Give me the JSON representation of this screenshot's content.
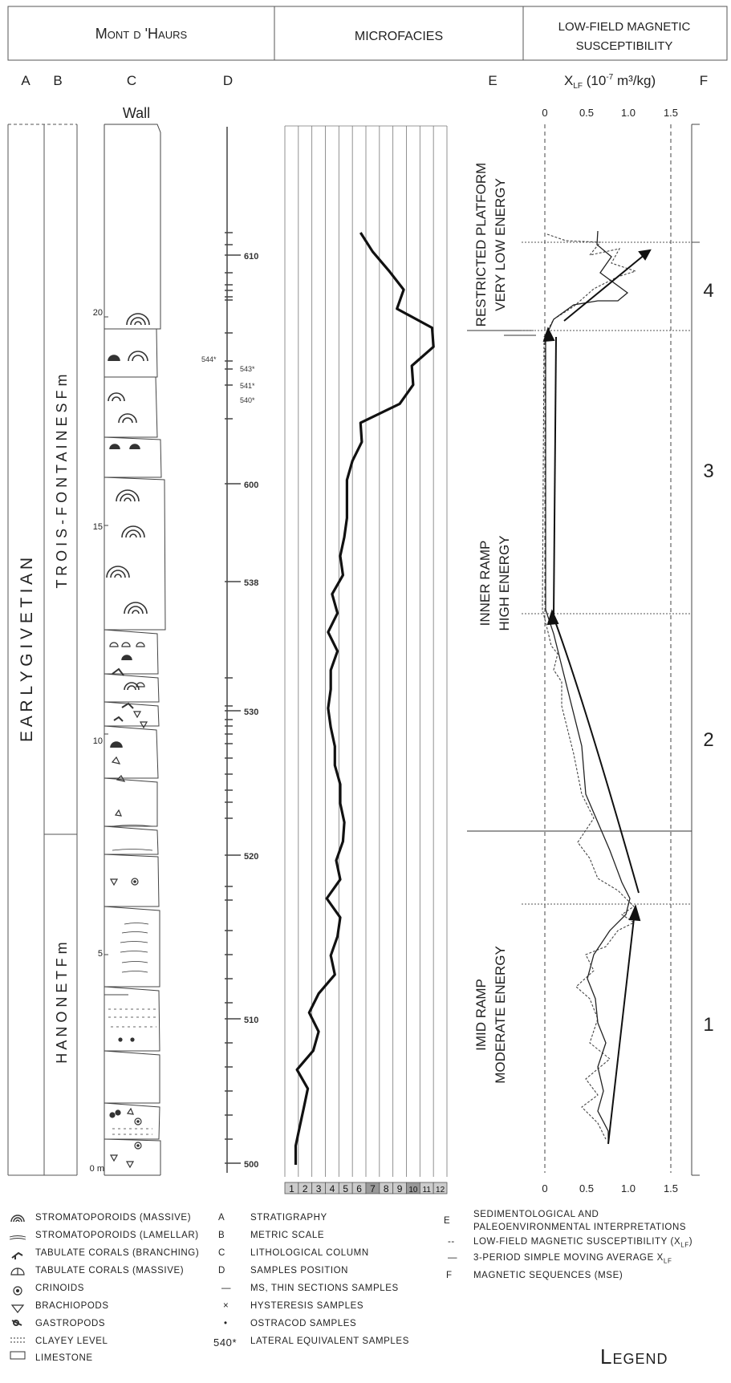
{
  "header": {
    "section_name": "Mont d 'Haurs",
    "microfacies": "MICROFACIES",
    "susceptibility_line1": "LOW-FIELD MAGNETIC",
    "susceptibility_line2": "SUSCEPTIBILITY"
  },
  "column_letters": [
    "A",
    "B",
    "C",
    "D",
    "E",
    "F"
  ],
  "xlf_axis": {
    "label_main": "X",
    "label_sub": "LF",
    "label_unit": " (10",
    "label_exp": "-7",
    "label_tail": " m³/kg)",
    "ticks": [
      "0",
      "0.5",
      "1.0",
      "1.5"
    ],
    "range": [
      0,
      1.5
    ]
  },
  "stratigraphy": {
    "stage": "E A R L Y   G I V E T I A N",
    "formation_upper": "T R O I S - F O N T A I N E S   F m",
    "formation_lower": "H A N O N E T   F m"
  },
  "lithology": {
    "wall_label": "Wall",
    "metric_ticks": [
      "0 m",
      "5",
      "10",
      "15",
      "20"
    ]
  },
  "sample_position": {
    "labels": [
      "500",
      "510",
      "520",
      "530",
      "538",
      "600",
      "610"
    ],
    "lateral_labels": [
      "544*",
      "543*",
      "541*",
      "540*"
    ]
  },
  "microfacies": {
    "scale": [
      "1",
      "2",
      "3",
      "4",
      "5",
      "6",
      "7",
      "8",
      "9",
      "10",
      "11",
      "12"
    ],
    "values": [
      1.3,
      1.3,
      1.6,
      1.9,
      2.2,
      1.4,
      2.6,
      3.0,
      2.3,
      3.0,
      4.2,
      3.9,
      4.4,
      4.6,
      3.6,
      4.6,
      4.3,
      4.8,
      4.9,
      4.6,
      4.6,
      4.2,
      4.2,
      3.9,
      3.7,
      3.9,
      3.9,
      4.4,
      3.7,
      4.4,
      4.0,
      4.8,
      4.6,
      4.9,
      5.1,
      5.1,
      5.1,
      5.5,
      6.2,
      6.1,
      9.0,
      10.0,
      9.9,
      11.5,
      11.4,
      8.8,
      9.3,
      8.2,
      7.0,
      6.1
    ]
  },
  "interpretation": {
    "unit4_line1": "RESTRICTED PLATFORM",
    "unit4_line2": "VERY LOW ENERGY",
    "unit3_line1": "INNER RAMP",
    "unit3_line2": "HIGH ENERGY",
    "unit1_line1": "IMID RAMP",
    "unit1_line2": "MODERATE ENERGY"
  },
  "sequences": [
    "1",
    "2",
    "3",
    "4"
  ],
  "legend": {
    "title": "Legend",
    "left": [
      "STROMATOPOROIDS (MASSIVE)",
      "STROMATOPOROIDS (LAMELLAR)",
      "TABULATE CORALS (BRANCHING)",
      "TABULATE CORALS (MASSIVE)",
      "CRINOIDS",
      "BRACHIOPODS",
      "GASTROPODS",
      "CLAYEY LEVEL",
      "LIMESTONE"
    ],
    "middle": [
      {
        "key": "A",
        "text": "STRATIGRAPHY"
      },
      {
        "key": "B",
        "text": "METRIC SCALE"
      },
      {
        "key": "C",
        "text": "LITHOLOGICAL COLUMN"
      },
      {
        "key": "D",
        "text": "SAMPLES POSITION"
      },
      {
        "key": "—",
        "text": "MS, THIN SECTIONS SAMPLES"
      },
      {
        "key": "×",
        "text": "HYSTERESIS SAMPLES"
      },
      {
        "key": "•",
        "text": "OSTRACOD SAMPLES"
      },
      {
        "key": "540*",
        "text": "LATERAL EQUIVALENT SAMPLES"
      }
    ],
    "right": [
      {
        "key": "E",
        "text": "SEDIMENTOLOGICAL AND"
      },
      {
        "key": "",
        "text": "PALEOENVIRONMENTAL INTERPRETATIONS"
      },
      {
        "key": "--",
        "text": "LOW-FIELD MAGNETIC SUSCEPTIBILITY (X"
      },
      {
        "key": "—",
        "text": "3-PERIOD SIMPLE MOVING AVERAGE X"
      },
      {
        "key": "F",
        "text": "MAGNETIC SEQUENCES (MSE)"
      }
    ],
    "sub_lf": "LF",
    "close_paren": ")"
  }
}
